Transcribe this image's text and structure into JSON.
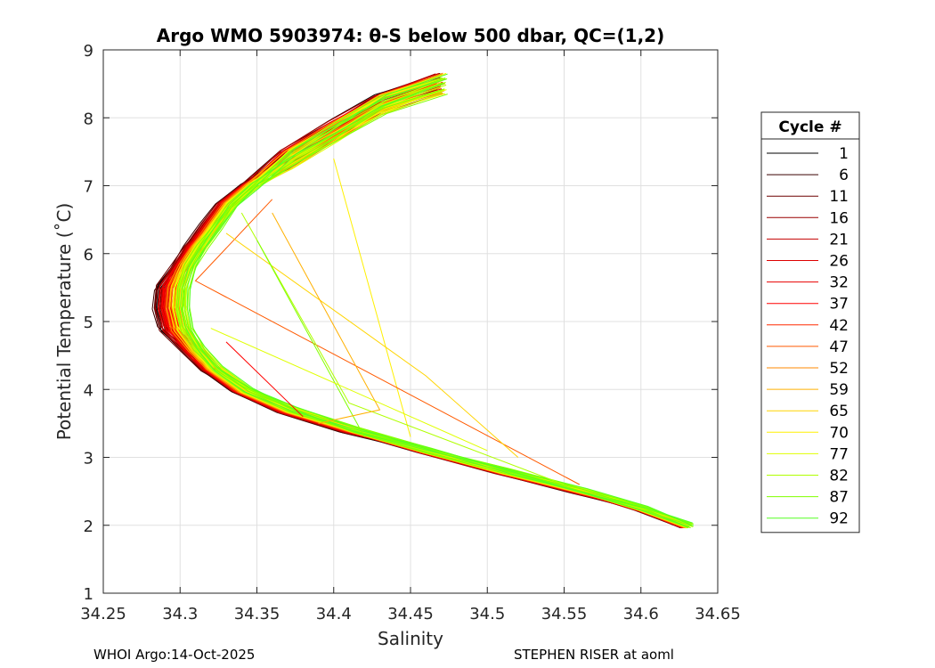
{
  "chart_data": {
    "type": "line",
    "title": "Argo WMO 5903974: θ-S below 500 dbar,  QC=(1,2)",
    "xlabel": "Salinity",
    "ylabel": "Potential Temperature (˚C)",
    "xlim": [
      34.25,
      34.65
    ],
    "ylim": [
      1,
      9
    ],
    "xticks": [
      "34.25",
      "34.3",
      "34.35",
      "34.4",
      "34.45",
      "34.5",
      "34.55",
      "34.6",
      "34.65"
    ],
    "yticks": [
      "1",
      "2",
      "3",
      "4",
      "5",
      "6",
      "7",
      "8",
      "9"
    ],
    "grid": true,
    "legend_title": "Cycle #",
    "legend_position": "right",
    "cycles": [
      "1",
      "6",
      "11",
      "16",
      "21",
      "26",
      "32",
      "37",
      "42",
      "47",
      "52",
      "59",
      "65",
      "70",
      "77",
      "82",
      "87",
      "92"
    ],
    "cycle_colors": [
      "#000000",
      "#3a0000",
      "#6e0000",
      "#990000",
      "#c40000",
      "#dd0000",
      "#e80000",
      "#ff0000",
      "#ff2a00",
      "#ff5a00",
      "#ff8a00",
      "#ffb000",
      "#ffd400",
      "#fff000",
      "#e0ff00",
      "#b0ff00",
      "#80ff00",
      "#55ff22"
    ],
    "base_profile": [
      {
        "s": 34.47,
        "t": 8.5
      },
      {
        "s": 34.43,
        "t": 8.2
      },
      {
        "s": 34.4,
        "t": 7.8
      },
      {
        "s": 34.37,
        "t": 7.4
      },
      {
        "s": 34.345,
        "t": 7.0
      },
      {
        "s": 34.33,
        "t": 6.7
      },
      {
        "s": 34.32,
        "t": 6.4
      },
      {
        "s": 34.31,
        "t": 6.1
      },
      {
        "s": 34.302,
        "t": 5.8
      },
      {
        "s": 34.298,
        "t": 5.5
      },
      {
        "s": 34.297,
        "t": 5.2
      },
      {
        "s": 34.3,
        "t": 4.9
      },
      {
        "s": 34.308,
        "t": 4.6
      },
      {
        "s": 34.32,
        "t": 4.3
      },
      {
        "s": 34.34,
        "t": 4.0
      },
      {
        "s": 34.37,
        "t": 3.7
      },
      {
        "s": 34.41,
        "t": 3.4
      },
      {
        "s": 34.46,
        "t": 3.1
      },
      {
        "s": 34.51,
        "t": 2.8
      },
      {
        "s": 34.56,
        "t": 2.5
      },
      {
        "s": 34.6,
        "t": 2.25
      },
      {
        "s": 34.63,
        "t": 2.0
      }
    ],
    "spikes": [
      {
        "cycle": "70",
        "points": [
          {
            "s": 34.4,
            "t": 7.4
          },
          {
            "s": 34.45,
            "t": 3.3
          }
        ]
      },
      {
        "cycle": "47",
        "points": [
          {
            "s": 34.36,
            "t": 6.8
          },
          {
            "s": 34.31,
            "t": 5.6
          },
          {
            "s": 34.56,
            "t": 2.6
          }
        ]
      },
      {
        "cycle": "65",
        "points": [
          {
            "s": 34.33,
            "t": 6.3
          },
          {
            "s": 34.46,
            "t": 4.2
          },
          {
            "s": 34.52,
            "t": 3.0
          }
        ]
      },
      {
        "cycle": "82",
        "points": [
          {
            "s": 34.34,
            "t": 6.6
          },
          {
            "s": 34.41,
            "t": 3.8
          },
          {
            "s": 34.55,
            "t": 2.6
          }
        ]
      },
      {
        "cycle": "87",
        "points": [
          {
            "s": 34.35,
            "t": 6.2
          },
          {
            "s": 34.42,
            "t": 3.3
          }
        ]
      },
      {
        "cycle": "77",
        "points": [
          {
            "s": 34.32,
            "t": 4.9
          },
          {
            "s": 34.5,
            "t": 3.1
          }
        ]
      },
      {
        "cycle": "37",
        "points": [
          {
            "s": 34.33,
            "t": 4.7
          },
          {
            "s": 34.38,
            "t": 3.6
          }
        ]
      },
      {
        "cycle": "59",
        "points": [
          {
            "s": 34.36,
            "t": 6.6
          },
          {
            "s": 34.43,
            "t": 3.7
          },
          {
            "s": 34.39,
            "t": 3.5
          }
        ]
      }
    ]
  },
  "footer": {
    "left": "WHOI Argo:14-Oct-2025",
    "right": "STEPHEN RISER at aoml"
  }
}
